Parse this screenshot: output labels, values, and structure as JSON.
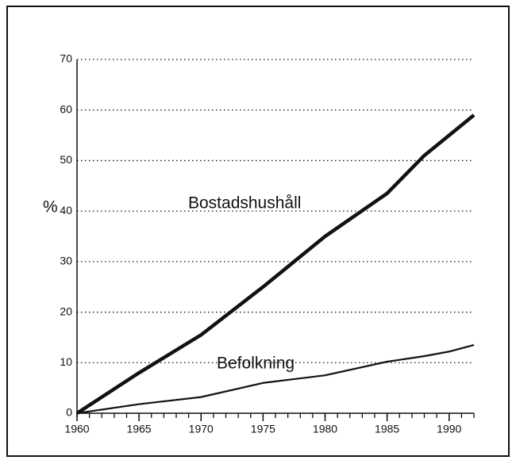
{
  "chart_data": {
    "type": "line",
    "y_label": "%",
    "series": [
      {
        "name": "Bostadshushåll",
        "color": "#111111",
        "x": [
          1960,
          1965,
          1970,
          1975,
          1980,
          1985,
          1988,
          1990,
          1992
        ],
        "values": [
          0,
          8,
          15.5,
          25,
          35,
          43.5,
          51,
          55,
          59
        ]
      },
      {
        "name": "Befolkning",
        "color": "#111111",
        "x": [
          1960,
          1965,
          1970,
          1975,
          1980,
          1985,
          1988,
          1990,
          1992
        ],
        "values": [
          0,
          1.8,
          3.2,
          6,
          7.5,
          10.2,
          11.3,
          12.2,
          13.5
        ]
      }
    ],
    "xlim": [
      1960,
      1992
    ],
    "xticks": [
      1960,
      1965,
      1970,
      1975,
      1980,
      1985,
      1990
    ],
    "ylim": [
      0,
      70
    ],
    "yticks": [
      0,
      10,
      20,
      30,
      40,
      50,
      60,
      70
    ],
    "grid": true
  }
}
